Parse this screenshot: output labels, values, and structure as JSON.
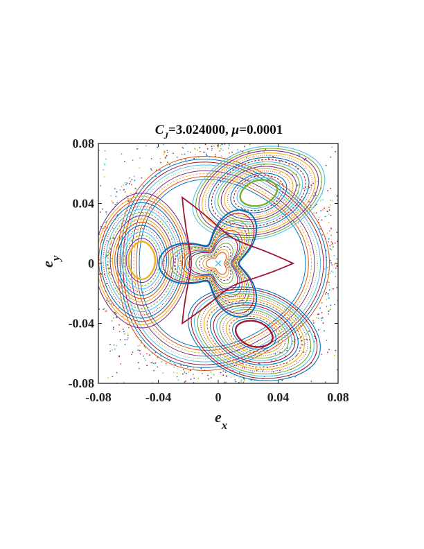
{
  "chart_data": {
    "type": "scatter",
    "title_parts": {
      "c": "C",
      "j": "J",
      "eq": "=3.024000, ",
      "mu": "μ",
      "mu_eq": "=0.0001"
    },
    "xlabel_main": "e",
    "xlabel_sub": "x",
    "ylabel_main": "e",
    "ylabel_sub": "y",
    "xlim": [
      -0.08,
      0.08
    ],
    "ylim": [
      -0.08,
      0.08
    ],
    "xticks": [
      -0.08,
      -0.04,
      0,
      0.04,
      0.08
    ],
    "yticks": [
      -0.08,
      -0.04,
      0,
      0.04,
      0.08
    ],
    "xtick_labels": [
      "-0.08",
      "-0.04",
      "0",
      "0.04",
      "0.08"
    ],
    "ytick_labels": [
      "-0.08",
      "-0.04",
      "0",
      "0.04",
      "0.08"
    ],
    "grid": false,
    "islands": [
      {
        "center": [
          -0.051,
          0.002
        ],
        "label": "left island"
      },
      {
        "center": [
          0.027,
          0.047
        ],
        "label": "upper-right island"
      },
      {
        "center": [
          0.024,
          -0.047
        ],
        "label": "lower-right island"
      }
    ],
    "hyperbolic_points": [
      [
        -0.024,
        0.044
      ],
      [
        -0.024,
        -0.04
      ],
      [
        0.05,
        0.0
      ]
    ],
    "center_point": [
      0.0,
      0.0
    ],
    "colors": [
      "#0072BD",
      "#D95319",
      "#EDB120",
      "#7E2F8E",
      "#77AC30",
      "#4DBEEE",
      "#A2142F"
    ]
  }
}
